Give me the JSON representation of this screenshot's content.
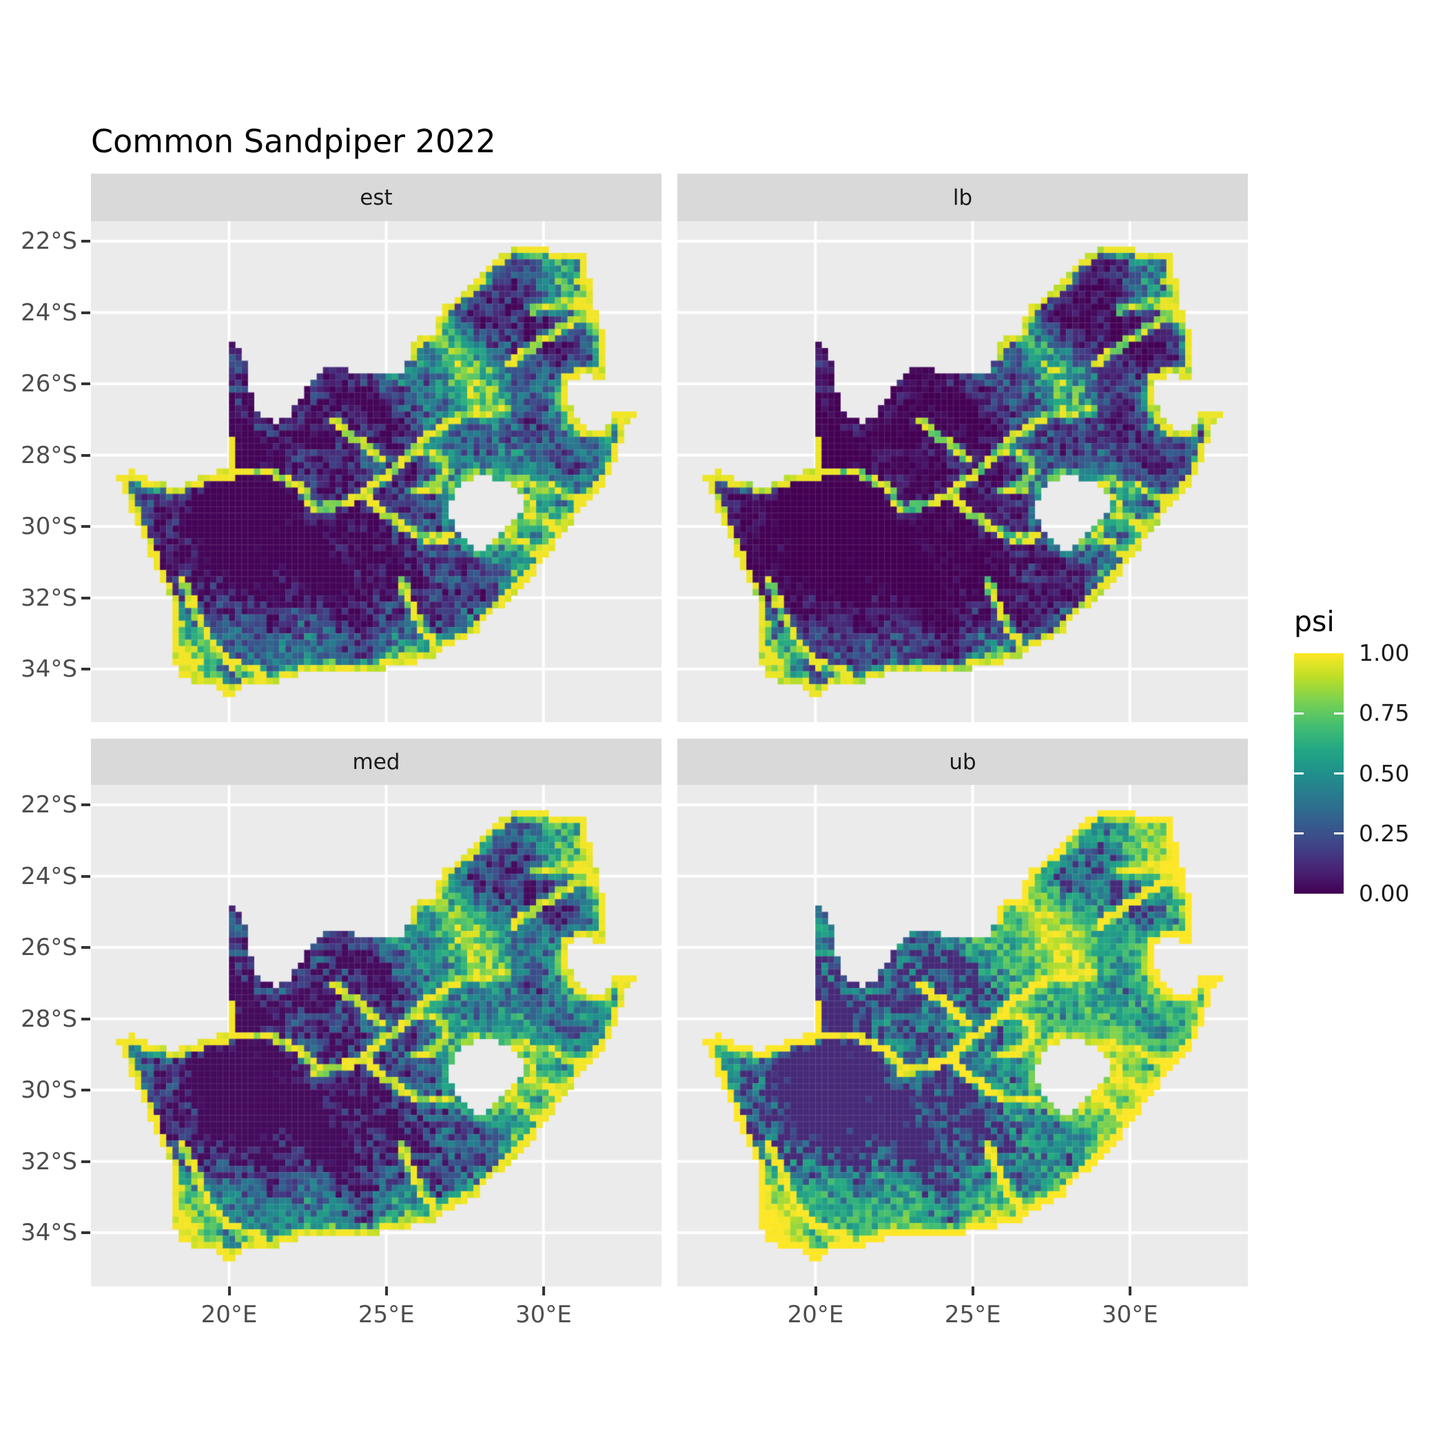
{
  "title": "Common Sandpiper 2022",
  "facets": [
    {
      "id": "est",
      "label": "est",
      "tone": {
        "pow": 1.15,
        "gain": 1.0,
        "off": 0.0
      }
    },
    {
      "id": "lb",
      "label": "lb",
      "tone": {
        "pow": 1.8,
        "gain": 1.0,
        "off": 0.0
      }
    },
    {
      "id": "med",
      "label": "med",
      "tone": {
        "pow": 0.9,
        "gain": 1.0,
        "off": 0.0
      }
    },
    {
      "id": "ub",
      "label": "ub",
      "tone": {
        "pow": 0.55,
        "gain": 1.06,
        "off": 0.0
      }
    }
  ],
  "axes": {
    "x": {
      "tick_labels": [
        "20°E",
        "25°E",
        "30°E"
      ],
      "tick_values": [
        20,
        25,
        30
      ]
    },
    "y": {
      "tick_labels": [
        "22°S",
        "24°S",
        "26°S",
        "28°S",
        "30°S",
        "32°S",
        "34°S"
      ],
      "tick_values": [
        -22,
        -24,
        -26,
        -28,
        -30,
        -32,
        -34
      ]
    }
  },
  "legend": {
    "title": "psi",
    "labels": [
      "1.00",
      "0.75",
      "0.50",
      "0.25",
      "0.00"
    ],
    "values": [
      1.0,
      0.75,
      0.5,
      0.25,
      0.0
    ]
  },
  "colors": {
    "background": "#ffffff",
    "panel_background": "#ebebeb",
    "strip_background": "#d9d9d9",
    "gridline": "#ffffff",
    "axis_text": "#4d4d4d",
    "axis_tick": "#333333",
    "strip_text": "#1a1a1a",
    "viridis_anchors": [
      [
        0.0,
        68,
        1,
        84
      ],
      [
        0.1,
        72,
        35,
        116
      ],
      [
        0.2,
        64,
        67,
        135
      ],
      [
        0.3,
        52,
        94,
        141
      ],
      [
        0.4,
        41,
        120,
        142
      ],
      [
        0.5,
        32,
        144,
        140
      ],
      [
        0.6,
        34,
        167,
        132
      ],
      [
        0.7,
        68,
        190,
        112
      ],
      [
        0.8,
        121,
        209,
        81
      ],
      [
        0.9,
        189,
        222,
        38
      ],
      [
        1.0,
        253,
        231,
        37
      ]
    ]
  },
  "chart_data": {
    "type": "heatmap",
    "title": "Common Sandpiper 2022",
    "variable": "psi",
    "region": "South Africa (Lesotho masked white)",
    "facets": [
      "est",
      "lb",
      "med",
      "ub"
    ],
    "scale": {
      "palette": "viridis",
      "limits": [
        0,
        1
      ],
      "breaks": [
        0,
        0.25,
        0.5,
        0.75,
        1
      ],
      "break_labels": [
        "0.00",
        "0.25",
        "0.50",
        "0.75",
        "1.00"
      ],
      "legend_position": "right"
    },
    "x": {
      "range_lon": [
        15.61,
        33.74
      ],
      "ticks": [
        20,
        25,
        30
      ],
      "tick_labels": [
        "20°E",
        "25°E",
        "30°E"
      ]
    },
    "y": {
      "range_lat": [
        -35.6,
        -21.44
      ],
      "ticks": [
        -22,
        -24,
        -26,
        -28,
        -30,
        -32,
        -34
      ],
      "tick_labels": [
        "22°S",
        "24°S",
        "26°S",
        "28°S",
        "30°S",
        "32°S",
        "34°S"
      ]
    },
    "grid": true,
    "cell_size_deg": 0.2,
    "facet_character": {
      "est": "medium-low occupancy, dark interior with green speckle",
      "lb": "lowest occupancy, mostly dark purple",
      "med": "medium occupancy, slightly brighter than est",
      "ub": "highest occupancy, widespread teal/green/yellow"
    },
    "map_geometry": {
      "outline": [
        [
          16.45,
          -28.6
        ],
        [
          16.9,
          -28.45
        ],
        [
          17.55,
          -28.72
        ],
        [
          18.35,
          -28.88
        ],
        [
          19.3,
          -28.52
        ],
        [
          19.93,
          -28.4
        ],
        [
          19.96,
          -24.78
        ],
        [
          20.45,
          -25.15
        ],
        [
          20.62,
          -25.95
        ],
        [
          20.75,
          -26.5
        ],
        [
          21.0,
          -26.9
        ],
        [
          21.5,
          -27.08
        ],
        [
          21.9,
          -26.9
        ],
        [
          22.4,
          -26.25
        ],
        [
          22.75,
          -25.85
        ],
        [
          23.1,
          -25.6
        ],
        [
          23.7,
          -25.58
        ],
        [
          24.35,
          -25.73
        ],
        [
          24.9,
          -25.78
        ],
        [
          25.55,
          -25.62
        ],
        [
          25.9,
          -24.75
        ],
        [
          26.45,
          -24.62
        ],
        [
          26.85,
          -23.85
        ],
        [
          27.2,
          -23.58
        ],
        [
          27.7,
          -23.18
        ],
        [
          28.3,
          -22.58
        ],
        [
          29.05,
          -22.18
        ],
        [
          29.65,
          -22.12
        ],
        [
          30.45,
          -22.28
        ],
        [
          31.3,
          -22.4
        ],
        [
          31.55,
          -23.5
        ],
        [
          31.98,
          -24.85
        ],
        [
          32.02,
          -25.63
        ],
        [
          31.95,
          -25.98
        ],
        [
          31.45,
          -25.72
        ],
        [
          30.8,
          -25.85
        ],
        [
          30.78,
          -26.4
        ],
        [
          30.95,
          -26.95
        ],
        [
          31.4,
          -27.25
        ],
        [
          31.97,
          -27.32
        ],
        [
          32.12,
          -26.86
        ],
        [
          32.9,
          -26.86
        ],
        [
          32.55,
          -27.3
        ],
        [
          32.4,
          -27.9
        ],
        [
          32.2,
          -28.4
        ],
        [
          31.95,
          -28.75
        ],
        [
          31.4,
          -29.3
        ],
        [
          30.8,
          -30.0
        ],
        [
          30.3,
          -30.6
        ],
        [
          29.65,
          -31.35
        ],
        [
          28.95,
          -32.0
        ],
        [
          28.3,
          -32.5
        ],
        [
          27.8,
          -33.0
        ],
        [
          27.0,
          -33.35
        ],
        [
          26.4,
          -33.72
        ],
        [
          25.65,
          -33.85
        ],
        [
          25.0,
          -33.98
        ],
        [
          24.4,
          -34.05
        ],
        [
          23.6,
          -34.08
        ],
        [
          22.85,
          -34.02
        ],
        [
          22.1,
          -34.18
        ],
        [
          21.25,
          -34.45
        ],
        [
          20.55,
          -34.45
        ],
        [
          20.0,
          -34.82
        ],
        [
          19.55,
          -34.48
        ],
        [
          18.95,
          -34.38
        ],
        [
          18.45,
          -34.22
        ],
        [
          18.28,
          -33.88
        ],
        [
          18.1,
          -33.25
        ],
        [
          18.3,
          -32.7
        ],
        [
          18.2,
          -32.2
        ],
        [
          17.85,
          -31.55
        ],
        [
          17.5,
          -30.8
        ],
        [
          17.05,
          -29.9
        ],
        [
          16.75,
          -29.2
        ]
      ],
      "lesotho_hole": [
        [
          27.3,
          -28.85
        ],
        [
          27.9,
          -28.6
        ],
        [
          28.5,
          -28.65
        ],
        [
          29.05,
          -28.9
        ],
        [
          29.45,
          -29.3
        ],
        [
          29.15,
          -29.8
        ],
        [
          28.5,
          -30.3
        ],
        [
          28.0,
          -30.68
        ],
        [
          27.55,
          -30.45
        ],
        [
          27.1,
          -29.95
        ],
        [
          27.0,
          -29.4
        ]
      ],
      "rivers": [
        [
          [
            16.5,
            -28.6
          ],
          [
            17.6,
            -28.75
          ],
          [
            18.6,
            -28.85
          ],
          [
            19.5,
            -28.6
          ],
          [
            20.3,
            -28.5
          ],
          [
            21.3,
            -28.45
          ],
          [
            22.2,
            -28.85
          ],
          [
            22.8,
            -29.5
          ],
          [
            23.6,
            -29.35
          ],
          [
            24.2,
            -29.1
          ],
          [
            24.9,
            -29.6
          ],
          [
            25.6,
            -30.05
          ],
          [
            26.3,
            -30.3
          ],
          [
            26.95,
            -30.3
          ]
        ],
        [
          [
            24.2,
            -29.1
          ],
          [
            24.8,
            -28.7
          ],
          [
            25.5,
            -28.15
          ],
          [
            26.1,
            -27.65
          ],
          [
            26.9,
            -27.1
          ],
          [
            27.7,
            -26.8
          ],
          [
            28.8,
            -26.7
          ]
        ],
        [
          [
            25.3,
            -28.3
          ],
          [
            25.9,
            -27.9
          ],
          [
            26.6,
            -28.0
          ],
          [
            27.0,
            -28.45
          ],
          [
            26.6,
            -28.9
          ],
          [
            25.9,
            -29.0
          ]
        ],
        [
          [
            24.8,
            -28.1
          ],
          [
            24.0,
            -27.5
          ],
          [
            23.3,
            -27.0
          ]
        ],
        [
          [
            29.0,
            -25.4
          ],
          [
            29.9,
            -24.8
          ],
          [
            30.8,
            -24.3
          ],
          [
            31.7,
            -24.05
          ]
        ],
        [
          [
            29.7,
            -23.9
          ],
          [
            30.9,
            -23.7
          ],
          [
            31.6,
            -23.8
          ]
        ],
        [
          [
            29.3,
            -28.75
          ],
          [
            30.2,
            -28.9
          ],
          [
            31.0,
            -29.2
          ]
        ],
        [
          [
            29.0,
            -30.2
          ],
          [
            30.0,
            -31.0
          ]
        ],
        [
          [
            29.6,
            -29.6
          ],
          [
            30.7,
            -30.2
          ]
        ],
        [
          [
            18.5,
            -31.5
          ],
          [
            18.9,
            -32.3
          ],
          [
            19.4,
            -33.3
          ],
          [
            20.2,
            -33.9
          ],
          [
            21.0,
            -34.1
          ]
        ],
        [
          [
            25.5,
            -31.6
          ],
          [
            25.9,
            -32.5
          ],
          [
            26.5,
            -33.3
          ]
        ]
      ],
      "hotspots": [
        [
          28.1,
          -26.2,
          0.85,
          0.5
        ],
        [
          30.9,
          -23.2,
          0.8,
          0.45
        ],
        [
          29.2,
          -29.6,
          1.1,
          0.3
        ],
        [
          18.6,
          -33.6,
          0.6,
          0.45
        ],
        [
          19.4,
          -34.3,
          0.8,
          0.3
        ],
        [
          22.3,
          -33.1,
          0.9,
          0.32
        ],
        [
          25.7,
          -33.6,
          0.7,
          0.3
        ],
        [
          27.4,
          -25.0,
          0.7,
          0.28
        ],
        [
          29.5,
          -27.5,
          3.0,
          0.1
        ],
        [
          20.8,
          -26.3,
          1.6,
          -0.33
        ],
        [
          19.8,
          -30.3,
          1.5,
          -0.33
        ],
        [
          22.5,
          -31.0,
          1.7,
          -0.28
        ],
        [
          28.6,
          -23.9,
          0.9,
          -0.3
        ],
        [
          31.3,
          -22.9,
          0.5,
          -0.22
        ],
        [
          28.7,
          -27.3,
          0.8,
          -0.28
        ],
        [
          24.5,
          -26.5,
          1.0,
          -0.25
        ],
        [
          30.2,
          -25.0,
          0.8,
          -0.35
        ],
        [
          25.3,
          -31.7,
          1.2,
          -0.25
        ],
        [
          19.0,
          -29.0,
          3.0,
          -0.08
        ]
      ]
    }
  }
}
